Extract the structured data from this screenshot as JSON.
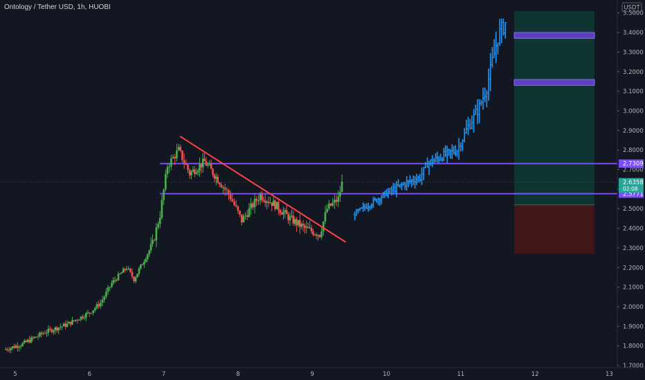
{
  "header": {
    "title": "Ontology / Tether USD, 1h, HUOBI"
  },
  "currency_badge": "USDT",
  "price_tag": {
    "price": "2.6358",
    "countdown": "02:08",
    "color": "#26a69a"
  },
  "level_tags": [
    {
      "label": "2.7309",
      "color": "#7b4dff"
    },
    {
      "label": "2.5771",
      "color": "#7b4dff"
    }
  ],
  "colors": {
    "background": "#131722",
    "up": "#26a69a",
    "up_bright": "#4caf50",
    "down": "#ef5350",
    "projection": "#2196f3",
    "level_line": "#7b4dff",
    "trendline": "#ff4343",
    "target_zone": "#0f3b36",
    "stop_zone": "#4a1616"
  },
  "chart_data": {
    "type": "candlestick",
    "title": "Ontology / Tether USD, 1h, HUOBI",
    "x_axis": {
      "tick_labels": [
        "5",
        "6",
        "7",
        "8",
        "9",
        "10",
        "11",
        "12",
        "13"
      ]
    },
    "y_axis": {
      "side": "right",
      "range": [
        1.7,
        3.56
      ],
      "tick_labels": [
        "1.7000",
        "1.8000",
        "1.9000",
        "2.0000",
        "2.1000",
        "2.2000",
        "2.3000",
        "2.4000",
        "2.5000",
        "2.6000",
        "2.7000",
        "2.8000",
        "2.9000",
        "3.0000",
        "3.1000",
        "3.2000",
        "3.3000",
        "3.4000",
        "3.5000"
      ]
    },
    "grid": false,
    "current_price": 2.6358,
    "horizontal_levels": [
      2.7309,
      2.5771
    ],
    "trendline": {
      "from": {
        "day": 7.22,
        "price": 2.87
      },
      "to": {
        "day": 9.45,
        "price": 2.33
      }
    },
    "target_boxes": [
      {
        "from_day": 11.72,
        "to_day": 12.8,
        "low": 3.37,
        "high": 3.4
      },
      {
        "from_day": 11.72,
        "to_day": 12.8,
        "low": 3.13,
        "high": 3.16
      }
    ],
    "risk_reward": {
      "from_day": 11.72,
      "to_day": 12.8,
      "entry": 2.52,
      "target": 3.51,
      "stop": 2.27
    },
    "anchors": [
      {
        "day": 4.85,
        "price": 1.78
      },
      {
        "day": 5.1,
        "price": 1.81
      },
      {
        "day": 5.4,
        "price": 1.87
      },
      {
        "day": 5.7,
        "price": 1.91
      },
      {
        "day": 6.0,
        "price": 1.97
      },
      {
        "day": 6.15,
        "price": 2.02
      },
      {
        "day": 6.3,
        "price": 2.12
      },
      {
        "day": 6.5,
        "price": 2.2
      },
      {
        "day": 6.6,
        "price": 2.14
      },
      {
        "day": 6.85,
        "price": 2.32
      },
      {
        "day": 6.95,
        "price": 2.47
      },
      {
        "day": 7.05,
        "price": 2.72
      },
      {
        "day": 7.2,
        "price": 2.8
      },
      {
        "day": 7.35,
        "price": 2.68
      },
      {
        "day": 7.55,
        "price": 2.74
      },
      {
        "day": 7.75,
        "price": 2.64
      },
      {
        "day": 7.9,
        "price": 2.56
      },
      {
        "day": 8.05,
        "price": 2.44
      },
      {
        "day": 8.2,
        "price": 2.52
      },
      {
        "day": 8.3,
        "price": 2.57
      },
      {
        "day": 8.5,
        "price": 2.52
      },
      {
        "day": 8.7,
        "price": 2.45
      },
      {
        "day": 8.9,
        "price": 2.4
      },
      {
        "day": 9.1,
        "price": 2.37
      },
      {
        "day": 9.2,
        "price": 2.5
      },
      {
        "day": 9.35,
        "price": 2.55
      },
      {
        "day": 9.4,
        "price": 2.63
      }
    ],
    "projection": [
      {
        "day": 9.55,
        "price": 2.47
      },
      {
        "day": 9.8,
        "price": 2.53
      },
      {
        "day": 10.0,
        "price": 2.58
      },
      {
        "day": 10.25,
        "price": 2.63
      },
      {
        "day": 10.45,
        "price": 2.66
      },
      {
        "day": 10.55,
        "price": 2.73
      },
      {
        "day": 10.75,
        "price": 2.77
      },
      {
        "day": 10.95,
        "price": 2.8
      },
      {
        "day": 11.1,
        "price": 2.92
      },
      {
        "day": 11.25,
        "price": 3.02
      },
      {
        "day": 11.35,
        "price": 3.12
      },
      {
        "day": 11.5,
        "price": 3.38
      },
      {
        "day": 11.6,
        "price": 3.45
      }
    ]
  }
}
